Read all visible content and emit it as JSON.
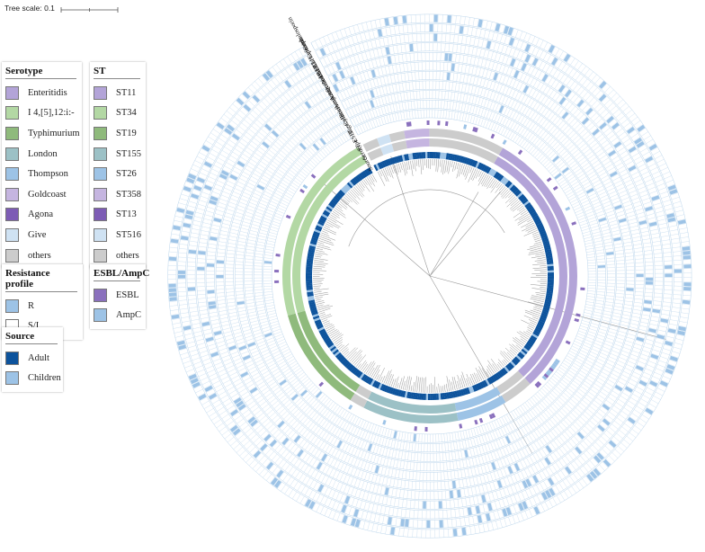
{
  "tree_scale": {
    "label": "Tree scale: 0.1"
  },
  "colors": {
    "ring_grid": "#bcd6ec",
    "R": "#9dc3e6",
    "Adult": "#0d539c",
    "Children": "#9dc3e6",
    "ESBL": "#8a70bd",
    "AmpC": "#9dc3e6",
    "Enteritidis": "#b3a4d8",
    "I 4,[5],12:i:-": "#b3d8a4",
    "Typhimurium": "#8fba7c",
    "London": "#9cc1c6",
    "Thompson": "#9dc3e6",
    "Goldcoast": "#c5b5e0",
    "Agona": "#7d5cb5",
    "Give": "#cfe2f3",
    "others": "#cccccc"
  },
  "legends": {
    "serotype": {
      "title": "Serotype",
      "items": [
        {
          "label": "Enteritidis",
          "color": "#b3a4d8"
        },
        {
          "label": "I 4,[5],12:i:-",
          "color": "#b3d8a4"
        },
        {
          "label": "Typhimurium",
          "color": "#8fba7c"
        },
        {
          "label": "London",
          "color": "#9cc1c6"
        },
        {
          "label": "Thompson",
          "color": "#9dc3e6"
        },
        {
          "label": "Goldcoast",
          "color": "#c5b5e0"
        },
        {
          "label": "Agona",
          "color": "#7d5cb5"
        },
        {
          "label": "Give",
          "color": "#cfe2f3"
        },
        {
          "label": "others",
          "color": "#cccccc"
        }
      ]
    },
    "st": {
      "title": "ST",
      "items": [
        {
          "label": "ST11",
          "color": "#b3a4d8"
        },
        {
          "label": "ST34",
          "color": "#b3d8a4"
        },
        {
          "label": "ST19",
          "color": "#8fba7c"
        },
        {
          "label": "ST155",
          "color": "#9cc1c6"
        },
        {
          "label": "ST26",
          "color": "#9dc3e6"
        },
        {
          "label": "ST358",
          "color": "#c5b5e0"
        },
        {
          "label": "ST13",
          "color": "#7d5cb5"
        },
        {
          "label": "ST516",
          "color": "#cfe2f3"
        },
        {
          "label": "others",
          "color": "#cccccc"
        }
      ]
    },
    "resistance": {
      "title": "Resistance profile",
      "items": [
        {
          "label": "R",
          "color": "#9dc3e6"
        },
        {
          "label": "S/I",
          "color": "#ffffff"
        }
      ]
    },
    "esbl": {
      "title": "ESBL/AmpC",
      "items": [
        {
          "label": "ESBL",
          "color": "#8a70bd"
        },
        {
          "label": "AmpC",
          "color": "#9dc3e6"
        }
      ]
    },
    "source": {
      "title": "Source",
      "items": [
        {
          "label": "Adult",
          "color": "#0d539c"
        },
        {
          "label": "Children",
          "color": "#9dc3e6"
        }
      ]
    }
  },
  "ring_labels": [
    "Source",
    "Serotype",
    "ST",
    "ESBL",
    "Tigecylin",
    "Colistin",
    "Fosfomycin",
    "Amikacin",
    "Aztreonam",
    "Quinolone",
    "N-BLBLI",
    "BLBLI",
    "Carbapenem",
    "Cefoxitin",
    "Cephalosporin"
  ],
  "tree": {
    "leaf_count": 360,
    "clades": [
      {
        "serotype": "others",
        "st": "others",
        "leaves": 6
      },
      {
        "serotype": "Give",
        "st": "ST516",
        "leaves": 5
      },
      {
        "serotype": "others",
        "st": "others",
        "leaves": 6
      },
      {
        "serotype": "Goldcoast",
        "st": "ST358",
        "leaves": 10
      },
      {
        "serotype": "others",
        "st": "others",
        "leaves": 30
      },
      {
        "serotype": "Enteritidis",
        "st": "ST11",
        "leaves": 108
      },
      {
        "serotype": "others",
        "st": "others",
        "leaves": 12
      },
      {
        "serotype": "Thompson",
        "st": "ST26",
        "leaves": 20
      },
      {
        "serotype": "London",
        "st": "ST155",
        "leaves": 38
      },
      {
        "serotype": "others",
        "st": "others",
        "leaves": 6
      },
      {
        "serotype": "Typhimurium",
        "st": "ST19",
        "leaves": 42
      },
      {
        "serotype": "I 4,[5],12:i:-",
        "st": "ST34",
        "leaves": 77
      }
    ]
  }
}
